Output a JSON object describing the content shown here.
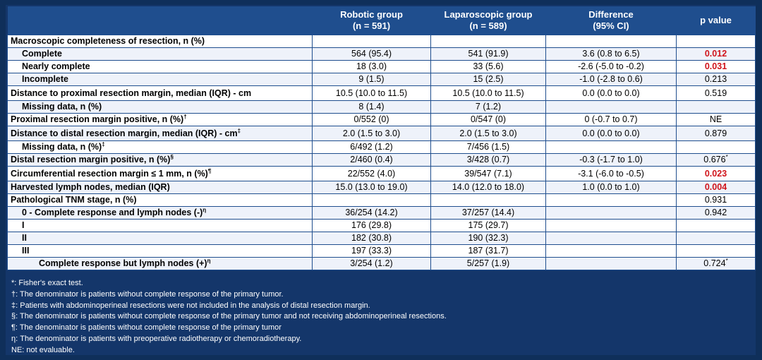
{
  "header": {
    "col0": "",
    "col1_line1": "Robotic group",
    "col1_line2": "(n = 591)",
    "col2_line1": "Laparoscopic group",
    "col2_line2": "(n = 589)",
    "col3_line1": "Difference",
    "col3_line2": "(95%  CI)",
    "col4": "p value"
  },
  "rows": [
    {
      "label": "Macroscopic completeness of resection, n (%)",
      "robotic": "",
      "laparoscopic": "",
      "difference": "",
      "p": ""
    },
    {
      "label": "Complete",
      "robotic": "564 (95.4)",
      "laparoscopic": "541 (91.9)",
      "difference": "3.6 (0.8 to 6.5)",
      "p": "0.012"
    },
    {
      "label": "Nearly complete",
      "robotic": "18 (3.0)",
      "laparoscopic": "33 (5.6)",
      "difference": "-2.6 (-5.0 to -0.2)",
      "p": "0.031"
    },
    {
      "label": "Incomplete",
      "robotic": "9 (1.5)",
      "laparoscopic": "15 (2.5)",
      "difference": "-1.0 (-2.8 to 0.6)",
      "p": "0.213"
    },
    {
      "label": "Distance to proximal resection margin, median (IQR) - cm",
      "robotic": "10.5 (10.0 to 11.5)",
      "laparoscopic": "10.5 (10.0 to 11.5)",
      "difference": "0.0 (0.0 to 0.0)",
      "p": "0.519"
    },
    {
      "label": "Missing data, n (%)",
      "robotic": "8 (1.4)",
      "laparoscopic": "7 (1.2)",
      "difference": "",
      "p": ""
    },
    {
      "label": "Proximal resection margin positive, n (%)",
      "sup": "†",
      "robotic": "0/552 (0)",
      "laparoscopic": "0/547 (0)",
      "difference": "0 (-0.7 to 0.7)",
      "p": "NE"
    },
    {
      "label": "Distance to distal resection margin, median (IQR) - cm",
      "sup": "‡",
      "robotic": "2.0 (1.5 to 3.0)",
      "laparoscopic": "2.0 (1.5 to 3.0)",
      "difference": "0.0 (0.0 to 0.0)",
      "p": "0.879"
    },
    {
      "label": "Missing data, n (%)",
      "sup": "‡",
      "robotic": "6/492 (1.2)",
      "laparoscopic": "7/456 (1.5)",
      "difference": "",
      "p": ""
    },
    {
      "label": "Distal resection margin positive, n (%)",
      "sup": "§",
      "robotic": "2/460 (0.4)",
      "laparoscopic": "3/428 (0.7)",
      "difference": "-0.3 (-1.7 to 1.0)",
      "p": "0.676",
      "p_sup": "*"
    },
    {
      "label": "Circumferential resection margin ≤ 1 mm, n (%)",
      "sup": "¶",
      "robotic": "22/552 (4.0)",
      "laparoscopic": "39/547 (7.1)",
      "difference": "-3.1 (-6.0 to -0.5)",
      "p": "0.023"
    },
    {
      "label": "Harvested lymph nodes, median (IQR)",
      "robotic": "15.0 (13.0 to 19.0)",
      "laparoscopic": "14.0 (12.0 to 18.0)",
      "difference": "1.0 (0.0 to 1.0)",
      "p": "0.004"
    },
    {
      "label": "Pathological TNM stage, n (%)",
      "robotic": "",
      "laparoscopic": "",
      "difference": "",
      "p": "0.931"
    },
    {
      "label": "0 - Complete response and lymph nodes (-)",
      "sup": "η",
      "robotic": "36/254 (14.2)",
      "laparoscopic": "37/257 (14.4)",
      "difference": "",
      "p": "0.942"
    },
    {
      "label": "I",
      "robotic": "176 (29.8)",
      "laparoscopic": "175 (29.7)",
      "difference": "",
      "p": ""
    },
    {
      "label": "II",
      "robotic": "182 (30.8)",
      "laparoscopic": "190 (32.3)",
      "difference": "",
      "p": ""
    },
    {
      "label": "III",
      "robotic": "197 (33.3)",
      "laparoscopic": "187 (31.7)",
      "difference": "",
      "p": ""
    },
    {
      "label": "Complete response but lymph nodes (+)",
      "sup": "η",
      "robotic": "3/254 (1.2)",
      "laparoscopic": "5/257 (1.9)",
      "difference": "",
      "p": "0.724",
      "p_sup": "*"
    }
  ],
  "footnotes": [
    "*: Fisher's exact test.",
    "†: The denominator is patients without complete response of the primary tumor.",
    "‡: Patients with abdominoperineal  resections were not included  in the analysis of distal resection margin.",
    " §: The denominator is patients without complete response of the primary tumor and not receiving abdominoperineal  resections.",
    "¶: The denominator is patients without complete response of the primary tumor",
    "η: The denominator is patients with preoperative radiotherapy or chemoradiotherapy.",
    "NE: not evaluable."
  ],
  "colors": {
    "background": "#0f2f5a",
    "header_blue": "#1f4e8e",
    "significant_red": "#d0141b"
  }
}
